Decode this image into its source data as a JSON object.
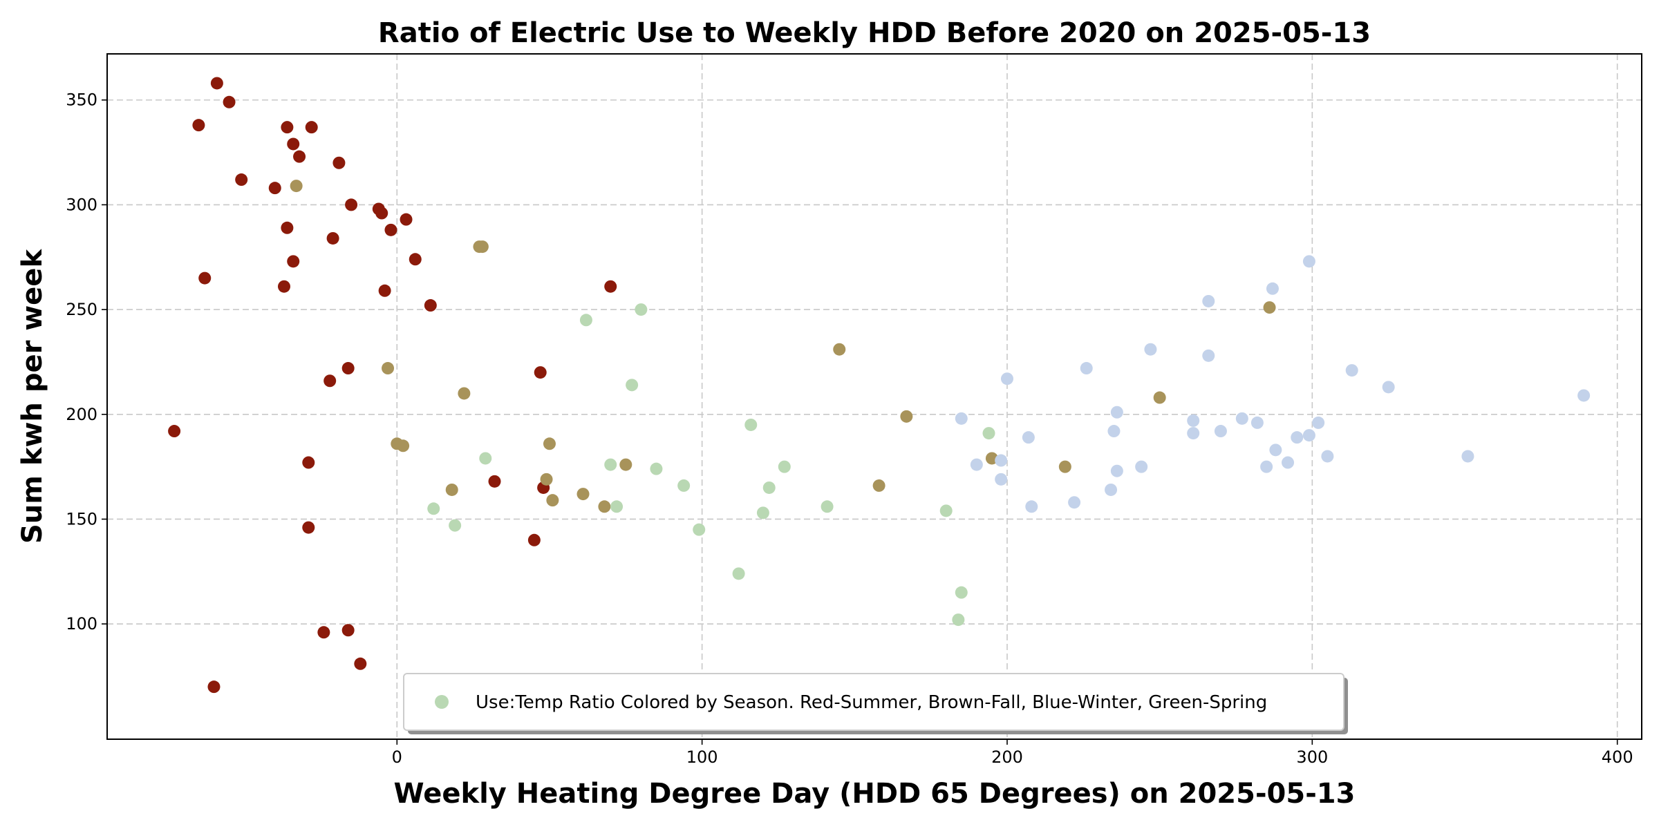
{
  "chart_data": {
    "type": "scatter",
    "title": "Ratio of Electric Use to Weekly HDD Before 2020 on 2025-05-13",
    "xlabel": "Weekly Heating Degree Day (HDD 65 Degrees) on 2025-05-13",
    "ylabel": "Sum kwh per week",
    "xlim": [
      -95,
      408
    ],
    "ylim": [
      45,
      372
    ],
    "xticks": [
      0,
      100,
      200,
      300,
      400
    ],
    "yticks": [
      100,
      150,
      200,
      250,
      300,
      350
    ],
    "grid": true,
    "legend": {
      "position": "bottom-center",
      "label": "Use:Temp Ratio Colored by Season. Red-Summer, Brown-Fall, Blue-Winter, Green-Spring",
      "marker_color": "#b9d8b3"
    },
    "colors": {
      "summer": "#8b1a0a",
      "fall": "#a8935a",
      "winter": "#c3d2ea",
      "spring": "#b9d8b3"
    },
    "points": [
      {
        "x": -59,
        "y": 358,
        "season": "summer"
      },
      {
        "x": -55,
        "y": 349,
        "season": "summer"
      },
      {
        "x": -65,
        "y": 338,
        "season": "summer"
      },
      {
        "x": -36,
        "y": 337,
        "season": "summer"
      },
      {
        "x": -28,
        "y": 337,
        "season": "summer"
      },
      {
        "x": -34,
        "y": 329,
        "season": "summer"
      },
      {
        "x": -32,
        "y": 323,
        "season": "summer"
      },
      {
        "x": -19,
        "y": 320,
        "season": "summer"
      },
      {
        "x": -51,
        "y": 312,
        "season": "summer"
      },
      {
        "x": -40,
        "y": 308,
        "season": "summer"
      },
      {
        "x": -15,
        "y": 300,
        "season": "summer"
      },
      {
        "x": -6,
        "y": 298,
        "season": "summer"
      },
      {
        "x": -5,
        "y": 296,
        "season": "summer"
      },
      {
        "x": 3,
        "y": 293,
        "season": "summer"
      },
      {
        "x": -36,
        "y": 289,
        "season": "summer"
      },
      {
        "x": -2,
        "y": 288,
        "season": "summer"
      },
      {
        "x": -21,
        "y": 284,
        "season": "summer"
      },
      {
        "x": -34,
        "y": 273,
        "season": "summer"
      },
      {
        "x": 6,
        "y": 274,
        "season": "summer"
      },
      {
        "x": -63,
        "y": 265,
        "season": "summer"
      },
      {
        "x": -37,
        "y": 261,
        "season": "summer"
      },
      {
        "x": -4,
        "y": 259,
        "season": "summer"
      },
      {
        "x": 70,
        "y": 261,
        "season": "summer"
      },
      {
        "x": 11,
        "y": 252,
        "season": "summer"
      },
      {
        "x": -16,
        "y": 222,
        "season": "summer"
      },
      {
        "x": 47,
        "y": 220,
        "season": "summer"
      },
      {
        "x": -22,
        "y": 216,
        "season": "summer"
      },
      {
        "x": -73,
        "y": 192,
        "season": "summer"
      },
      {
        "x": -29,
        "y": 177,
        "season": "summer"
      },
      {
        "x": 32,
        "y": 168,
        "season": "summer"
      },
      {
        "x": 48,
        "y": 165,
        "season": "summer"
      },
      {
        "x": -29,
        "y": 146,
        "season": "summer"
      },
      {
        "x": 45,
        "y": 140,
        "season": "summer"
      },
      {
        "x": -24,
        "y": 96,
        "season": "summer"
      },
      {
        "x": -16,
        "y": 97,
        "season": "summer"
      },
      {
        "x": -12,
        "y": 81,
        "season": "summer"
      },
      {
        "x": -60,
        "y": 70,
        "season": "summer"
      },
      {
        "x": -33,
        "y": 309,
        "season": "fall"
      },
      {
        "x": 27,
        "y": 280,
        "season": "fall"
      },
      {
        "x": 28,
        "y": 280,
        "season": "fall"
      },
      {
        "x": 286,
        "y": 251,
        "season": "fall"
      },
      {
        "x": 145,
        "y": 231,
        "season": "fall"
      },
      {
        "x": -3,
        "y": 222,
        "season": "fall"
      },
      {
        "x": 22,
        "y": 210,
        "season": "fall"
      },
      {
        "x": 250,
        "y": 208,
        "season": "fall"
      },
      {
        "x": 167,
        "y": 199,
        "season": "fall"
      },
      {
        "x": 0,
        "y": 186,
        "season": "fall"
      },
      {
        "x": 2,
        "y": 185,
        "season": "fall"
      },
      {
        "x": 50,
        "y": 186,
        "season": "fall"
      },
      {
        "x": 195,
        "y": 179,
        "season": "fall"
      },
      {
        "x": 75,
        "y": 176,
        "season": "fall"
      },
      {
        "x": 219,
        "y": 175,
        "season": "fall"
      },
      {
        "x": 49,
        "y": 169,
        "season": "fall"
      },
      {
        "x": 158,
        "y": 166,
        "season": "fall"
      },
      {
        "x": 18,
        "y": 164,
        "season": "fall"
      },
      {
        "x": 61,
        "y": 162,
        "season": "fall"
      },
      {
        "x": 51,
        "y": 159,
        "season": "fall"
      },
      {
        "x": 68,
        "y": 156,
        "season": "fall"
      },
      {
        "x": 80,
        "y": 250,
        "season": "spring"
      },
      {
        "x": 62,
        "y": 245,
        "season": "spring"
      },
      {
        "x": 77,
        "y": 214,
        "season": "spring"
      },
      {
        "x": 116,
        "y": 195,
        "season": "spring"
      },
      {
        "x": 194,
        "y": 191,
        "season": "spring"
      },
      {
        "x": 29,
        "y": 179,
        "season": "spring"
      },
      {
        "x": 70,
        "y": 176,
        "season": "spring"
      },
      {
        "x": 127,
        "y": 175,
        "season": "spring"
      },
      {
        "x": 85,
        "y": 174,
        "season": "spring"
      },
      {
        "x": 94,
        "y": 166,
        "season": "spring"
      },
      {
        "x": 122,
        "y": 165,
        "season": "spring"
      },
      {
        "x": 141,
        "y": 156,
        "season": "spring"
      },
      {
        "x": 72,
        "y": 156,
        "season": "spring"
      },
      {
        "x": 12,
        "y": 155,
        "season": "spring"
      },
      {
        "x": 120,
        "y": 153,
        "season": "spring"
      },
      {
        "x": 180,
        "y": 154,
        "season": "spring"
      },
      {
        "x": 19,
        "y": 147,
        "season": "spring"
      },
      {
        "x": 99,
        "y": 145,
        "season": "spring"
      },
      {
        "x": 112,
        "y": 124,
        "season": "spring"
      },
      {
        "x": 185,
        "y": 115,
        "season": "spring"
      },
      {
        "x": 184,
        "y": 102,
        "season": "spring"
      },
      {
        "x": 299,
        "y": 273,
        "season": "winter"
      },
      {
        "x": 287,
        "y": 260,
        "season": "winter"
      },
      {
        "x": 266,
        "y": 254,
        "season": "winter"
      },
      {
        "x": 247,
        "y": 231,
        "season": "winter"
      },
      {
        "x": 266,
        "y": 228,
        "season": "winter"
      },
      {
        "x": 226,
        "y": 222,
        "season": "winter"
      },
      {
        "x": 313,
        "y": 221,
        "season": "winter"
      },
      {
        "x": 200,
        "y": 217,
        "season": "winter"
      },
      {
        "x": 325,
        "y": 213,
        "season": "winter"
      },
      {
        "x": 389,
        "y": 209,
        "season": "winter"
      },
      {
        "x": 236,
        "y": 201,
        "season": "winter"
      },
      {
        "x": 185,
        "y": 198,
        "season": "winter"
      },
      {
        "x": 277,
        "y": 198,
        "season": "winter"
      },
      {
        "x": 261,
        "y": 197,
        "season": "winter"
      },
      {
        "x": 282,
        "y": 196,
        "season": "winter"
      },
      {
        "x": 302,
        "y": 196,
        "season": "winter"
      },
      {
        "x": 235,
        "y": 192,
        "season": "winter"
      },
      {
        "x": 261,
        "y": 191,
        "season": "winter"
      },
      {
        "x": 270,
        "y": 192,
        "season": "winter"
      },
      {
        "x": 299,
        "y": 190,
        "season": "winter"
      },
      {
        "x": 207,
        "y": 189,
        "season": "winter"
      },
      {
        "x": 295,
        "y": 189,
        "season": "winter"
      },
      {
        "x": 288,
        "y": 183,
        "season": "winter"
      },
      {
        "x": 351,
        "y": 180,
        "season": "winter"
      },
      {
        "x": 305,
        "y": 180,
        "season": "winter"
      },
      {
        "x": 198,
        "y": 178,
        "season": "winter"
      },
      {
        "x": 190,
        "y": 176,
        "season": "winter"
      },
      {
        "x": 244,
        "y": 175,
        "season": "winter"
      },
      {
        "x": 292,
        "y": 177,
        "season": "winter"
      },
      {
        "x": 285,
        "y": 175,
        "season": "winter"
      },
      {
        "x": 236,
        "y": 173,
        "season": "winter"
      },
      {
        "x": 198,
        "y": 169,
        "season": "winter"
      },
      {
        "x": 234,
        "y": 164,
        "season": "winter"
      },
      {
        "x": 222,
        "y": 158,
        "season": "winter"
      },
      {
        "x": 208,
        "y": 156,
        "season": "winter"
      }
    ]
  }
}
